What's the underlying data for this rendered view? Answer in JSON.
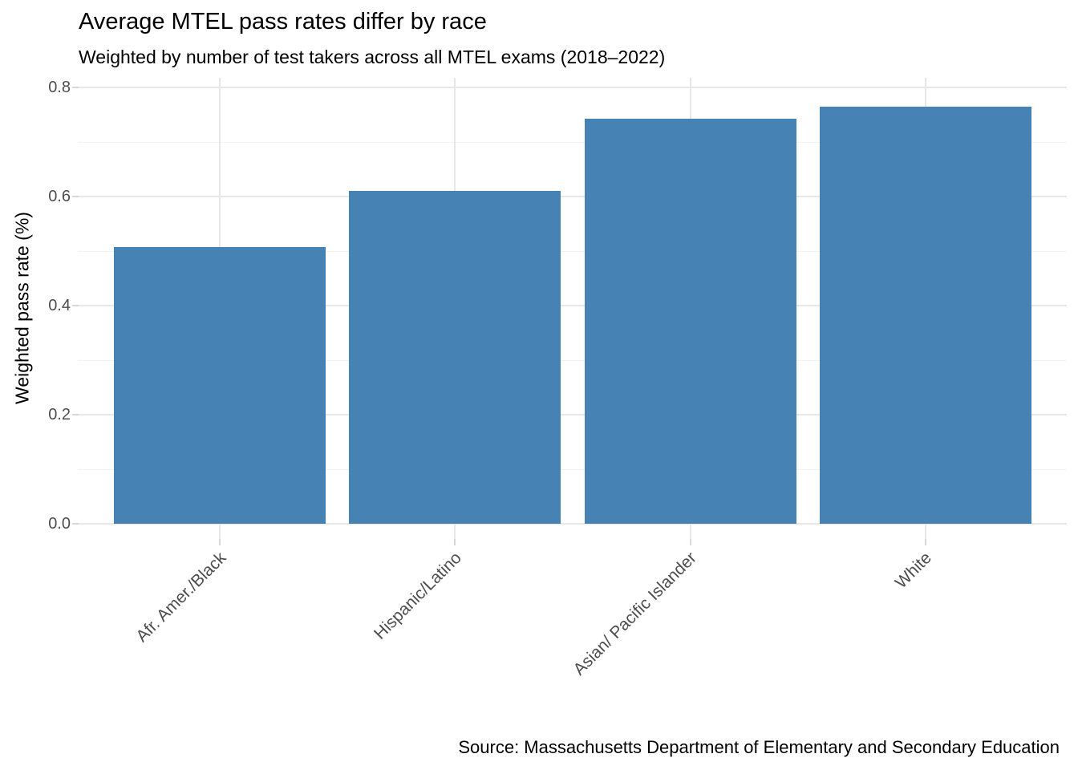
{
  "header": {
    "title": "Average MTEL pass rates differ by race",
    "subtitle": "Weighted by number of test takers across all MTEL exams (2018–2022)"
  },
  "caption": "Source: Massachusetts Department of Elementary and Secondary Education",
  "chart_data": {
    "type": "bar",
    "title": "Average MTEL pass rates differ by race",
    "subtitle": "Weighted by number of test takers across all MTEL exams (2018–2022)",
    "caption": "Source: Massachusetts Department of Elementary and Secondary Education",
    "categories": [
      "Afr. Amer./Black",
      "Hispanic/Latino",
      "Asian/ Pacific Islander",
      "White"
    ],
    "values": [
      0.507,
      0.61,
      0.743,
      0.764
    ],
    "xlabel": "",
    "ylabel": "Weighted pass rate (%)",
    "ylim": [
      0,
      0.8
    ],
    "yticks": [
      0.0,
      0.2,
      0.4,
      0.6,
      0.8
    ],
    "ytick_labels": [
      "0.0",
      "0.2",
      "0.4",
      "0.6",
      "0.8"
    ],
    "minor_gridlines": [
      0.1,
      0.3,
      0.5,
      0.7
    ],
    "grid": true,
    "legend_position": "none",
    "bar_color": "#4682b4",
    "grid_major_color": "#e7e7e7",
    "grid_minor_color": "#f3f3f3",
    "tick_color": "#d8d8d8",
    "axis_text_color": "#4d4d4d",
    "title_color": "#000000"
  }
}
